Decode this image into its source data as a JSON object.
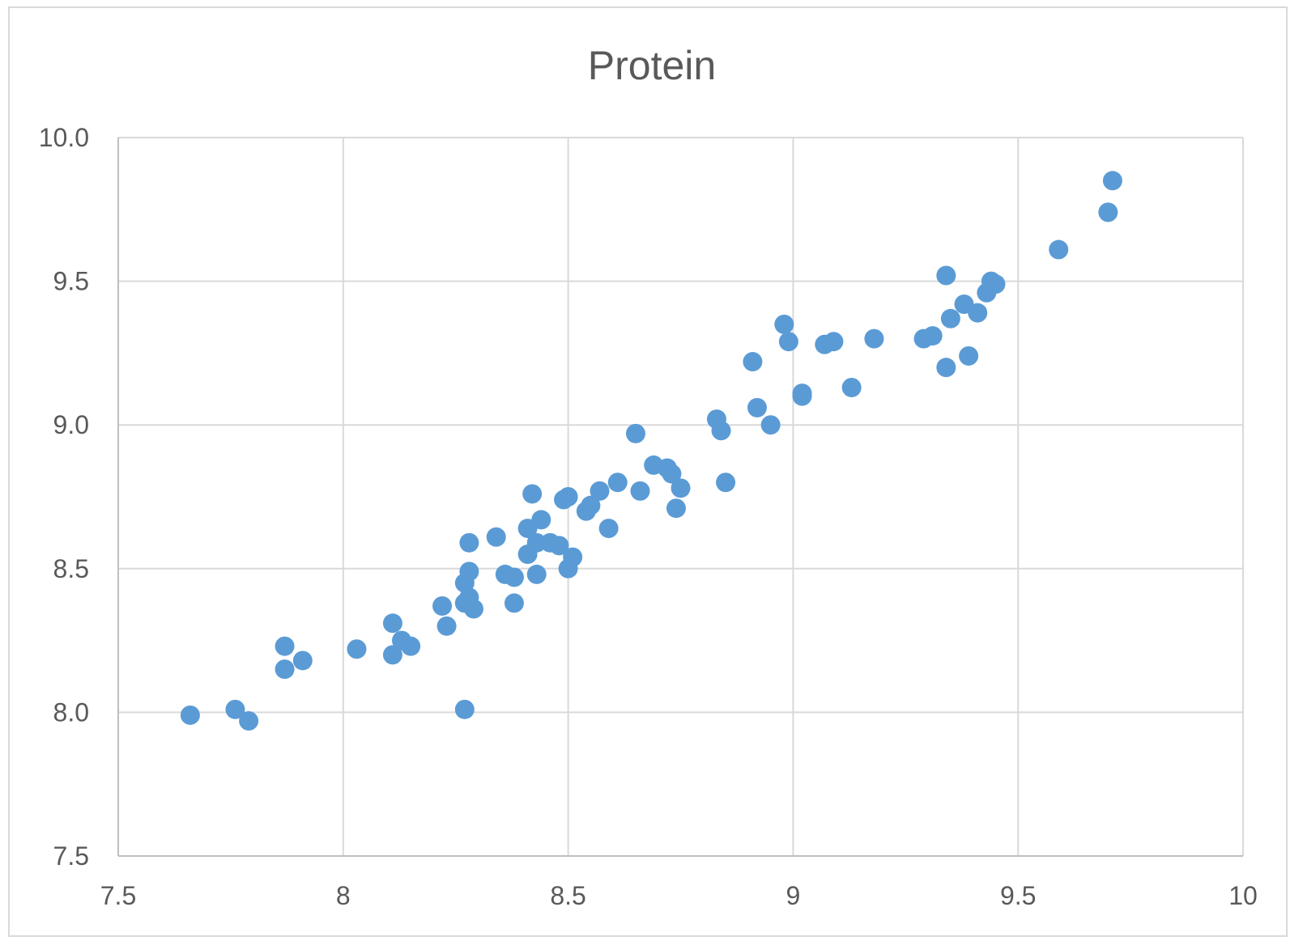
{
  "chart_data": {
    "type": "scatter",
    "title": "Protein",
    "xlabel": "",
    "ylabel": "",
    "xlim": [
      7.5,
      10
    ],
    "ylim": [
      7.5,
      10.0
    ],
    "x_ticks": [
      "7.5",
      "8",
      "8.5",
      "9",
      "9.5",
      "10"
    ],
    "y_ticks": [
      "7.5",
      "8.0",
      "8.5",
      "9.0",
      "9.5",
      "10.0"
    ],
    "grid": true,
    "legend": "none",
    "marker_color": "#5b9bd5",
    "series": [
      {
        "points": [
          [
            7.66,
            7.99
          ],
          [
            7.76,
            8.01
          ],
          [
            7.79,
            7.97
          ],
          [
            7.87,
            8.23
          ],
          [
            7.87,
            8.15
          ],
          [
            7.91,
            8.18
          ],
          [
            8.03,
            8.22
          ],
          [
            8.11,
            8.31
          ],
          [
            8.11,
            8.2
          ],
          [
            8.13,
            8.25
          ],
          [
            8.15,
            8.23
          ],
          [
            8.22,
            8.37
          ],
          [
            8.23,
            8.3
          ],
          [
            8.27,
            8.01
          ],
          [
            8.28,
            8.59
          ],
          [
            8.28,
            8.49
          ],
          [
            8.27,
            8.45
          ],
          [
            8.27,
            8.38
          ],
          [
            8.28,
            8.4
          ],
          [
            8.29,
            8.36
          ],
          [
            8.34,
            8.61
          ],
          [
            8.36,
            8.48
          ],
          [
            8.38,
            8.47
          ],
          [
            8.38,
            8.38
          ],
          [
            8.41,
            8.64
          ],
          [
            8.42,
            8.76
          ],
          [
            8.41,
            8.55
          ],
          [
            8.43,
            8.59
          ],
          [
            8.43,
            8.48
          ],
          [
            8.44,
            8.67
          ],
          [
            8.46,
            8.59
          ],
          [
            8.48,
            8.58
          ],
          [
            8.49,
            8.74
          ],
          [
            8.5,
            8.75
          ],
          [
            8.5,
            8.5
          ],
          [
            8.51,
            8.54
          ],
          [
            8.54,
            8.7
          ],
          [
            8.55,
            8.72
          ],
          [
            8.57,
            8.77
          ],
          [
            8.59,
            8.64
          ],
          [
            8.61,
            8.8
          ],
          [
            8.65,
            8.97
          ],
          [
            8.66,
            8.77
          ],
          [
            8.69,
            8.86
          ],
          [
            8.72,
            8.85
          ],
          [
            8.73,
            8.83
          ],
          [
            8.74,
            8.71
          ],
          [
            8.75,
            8.78
          ],
          [
            8.83,
            9.02
          ],
          [
            8.84,
            8.98
          ],
          [
            8.85,
            8.8
          ],
          [
            8.91,
            9.22
          ],
          [
            8.92,
            9.06
          ],
          [
            8.95,
            9.0
          ],
          [
            8.98,
            9.35
          ],
          [
            8.99,
            9.29
          ],
          [
            9.02,
            9.11
          ],
          [
            9.02,
            9.1
          ],
          [
            9.07,
            9.28
          ],
          [
            9.09,
            9.29
          ],
          [
            9.13,
            9.13
          ],
          [
            9.18,
            9.3
          ],
          [
            9.29,
            9.3
          ],
          [
            9.31,
            9.31
          ],
          [
            9.34,
            9.52
          ],
          [
            9.34,
            9.2
          ],
          [
            9.35,
            9.37
          ],
          [
            9.38,
            9.42
          ],
          [
            9.39,
            9.24
          ],
          [
            9.41,
            9.39
          ],
          [
            9.43,
            9.46
          ],
          [
            9.44,
            9.5
          ],
          [
            9.45,
            9.49
          ],
          [
            9.59,
            9.61
          ],
          [
            9.7,
            9.74
          ],
          [
            9.71,
            9.85
          ]
        ]
      }
    ]
  }
}
